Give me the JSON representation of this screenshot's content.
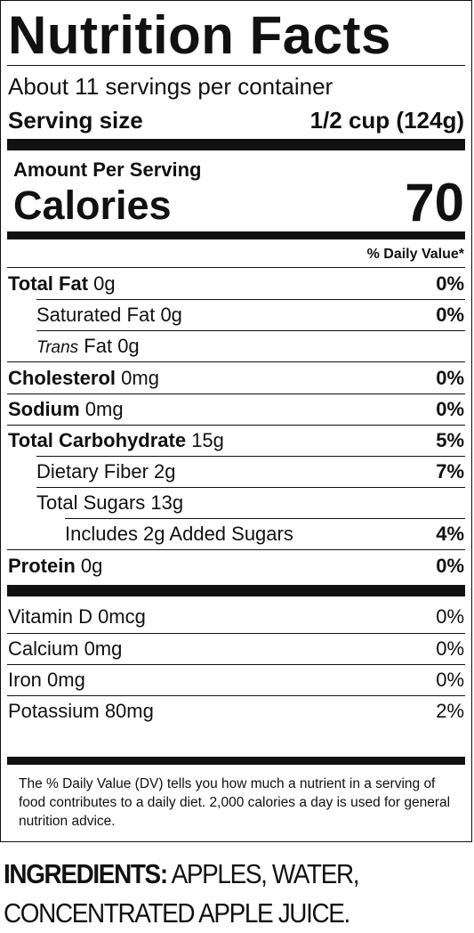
{
  "label": {
    "title": "Nutrition Facts",
    "servings_per_container": "About 11 servings per container",
    "serving_size_label": "Serving size",
    "serving_size_value": "1/2 cup (124g)",
    "amount_per_serving": "Amount Per Serving",
    "calories_label": "Calories",
    "calories_value": "70",
    "daily_value_header": "% Daily Value*",
    "nutrients": [
      {
        "name": "Total Fat",
        "amount": "0g",
        "dv": "0%"
      },
      {
        "name": "Saturated Fat",
        "amount": "0g",
        "dv": "0%"
      },
      {
        "name": "Trans",
        "amount": "Fat 0g",
        "dv": ""
      },
      {
        "name": "Cholesterol",
        "amount": "0mg",
        "dv": "0%"
      },
      {
        "name": "Sodium",
        "amount": "0mg",
        "dv": "0%"
      },
      {
        "name": "Total Carbohydrate",
        "amount": "15g",
        "dv": "5%"
      },
      {
        "name": "Dietary Fiber",
        "amount": "2g",
        "dv": "7%"
      },
      {
        "name": "Total Sugars",
        "amount": "13g",
        "dv": ""
      },
      {
        "name": "Includes 2g Added Sugars",
        "amount": "",
        "dv": "4%"
      },
      {
        "name": "Protein",
        "amount": "0g",
        "dv": "0%"
      }
    ],
    "vitamins": [
      {
        "name": "Vitamin D 0mcg",
        "dv": "0%"
      },
      {
        "name": "Calcium 0mg",
        "dv": "0%"
      },
      {
        "name": "Iron 0mg",
        "dv": "0%"
      },
      {
        "name": "Potassium 80mg",
        "dv": "2%"
      }
    ],
    "footnote": "The % Daily Value (DV) tells you how much a nutrient in a serving of food contributes to a daily diet. 2,000 calories a day is used for general nutrition advice."
  },
  "ingredients": {
    "heading": "INGREDIENTS:",
    "text": " APPLES,  WATER, CONCENTRATED APPLE JUICE."
  }
}
